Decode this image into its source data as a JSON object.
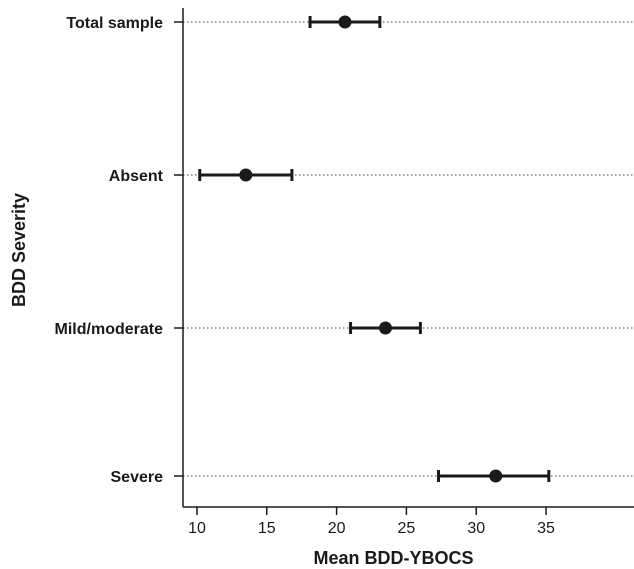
{
  "chart_data": {
    "type": "scatter",
    "title": "",
    "xlabel": "Mean BDD-YBOCS",
    "ylabel": "BDD Severity",
    "xlim": [
      9,
      41.3
    ],
    "xticks": [
      10,
      15,
      20,
      25,
      30,
      35
    ],
    "grid": "dotted horizontal guide lines at each category",
    "legend": "none",
    "colors": {
      "marker": "#1a1a1a",
      "axis": "#1a1a1a",
      "guide": "#444444"
    },
    "categories": [
      "Total sample",
      "Absent",
      "Mild/moderate",
      "Severe"
    ],
    "points": [
      {
        "category": "Total sample",
        "mean": 20.6,
        "lower": 18.1,
        "upper": 23.1
      },
      {
        "category": "Absent",
        "mean": 13.5,
        "lower": 10.2,
        "upper": 16.8
      },
      {
        "category": "Mild/moderate",
        "mean": 23.5,
        "lower": 21.0,
        "upper": 26.0
      },
      {
        "category": "Severe",
        "mean": 31.4,
        "lower": 27.3,
        "upper": 35.2
      }
    ]
  }
}
